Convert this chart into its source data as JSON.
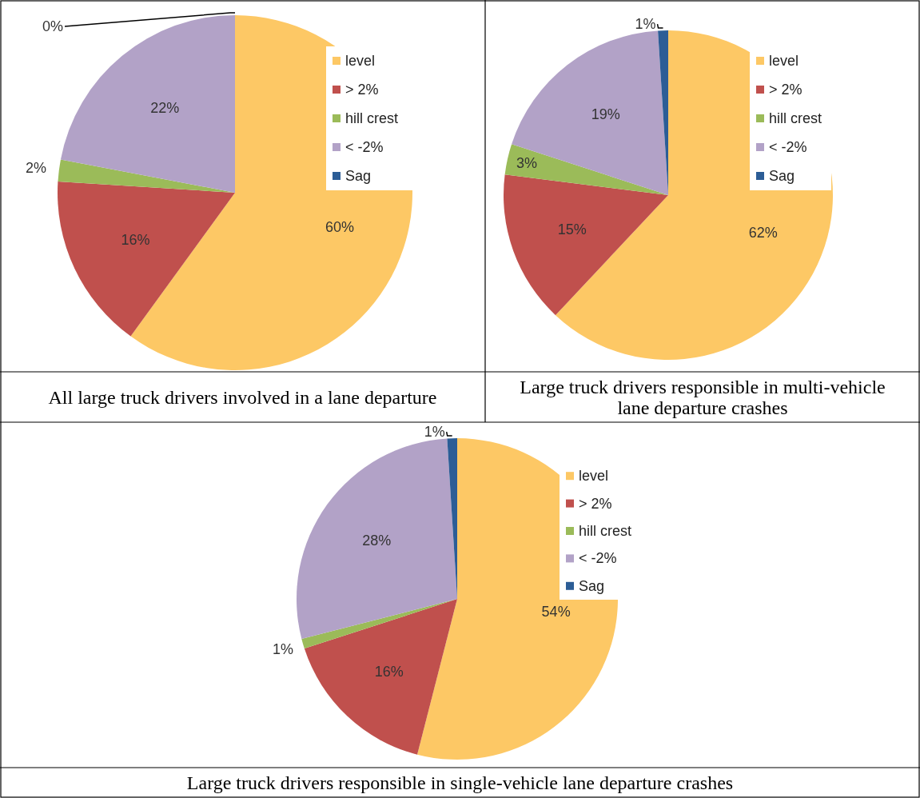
{
  "chart_data": [
    {
      "type": "pie",
      "title": "All large truck drivers involved in a lane departure",
      "categories": [
        "level",
        "> 2%",
        "hill crest",
        "< -2%",
        "Sag"
      ],
      "values": [
        60,
        16,
        2,
        22,
        0
      ],
      "value_labels": [
        "60%",
        "16%",
        "2%",
        "22%",
        "0%"
      ],
      "colors": [
        "#fdc865",
        "#c0504d",
        "#9bbb59",
        "#b2a2c7",
        "#2c5d96"
      ],
      "legend": "right"
    },
    {
      "type": "pie",
      "title": "Large truck drivers responsible in multi-vehicle lane departure crashes",
      "categories": [
        "level",
        "> 2%",
        "hill crest",
        "< -2%",
        "Sag"
      ],
      "values": [
        62,
        15,
        3,
        19,
        1
      ],
      "value_labels": [
        "62%",
        "15%",
        "3%",
        "19%",
        "1%"
      ],
      "colors": [
        "#fdc865",
        "#c0504d",
        "#9bbb59",
        "#b2a2c7",
        "#2c5d96"
      ],
      "legend": "right"
    },
    {
      "type": "pie",
      "title": "Large truck drivers responsible in single-vehicle lane departure crashes",
      "categories": [
        "level",
        "> 2%",
        "hill crest",
        "< -2%",
        "Sag"
      ],
      "values": [
        54,
        16,
        1,
        28,
        1
      ],
      "value_labels": [
        "54%",
        "16%",
        "1%",
        "28%",
        "1%"
      ],
      "colors": [
        "#fdc865",
        "#c0504d",
        "#9bbb59",
        "#b2a2c7",
        "#2c5d96"
      ],
      "legend": "right"
    }
  ]
}
